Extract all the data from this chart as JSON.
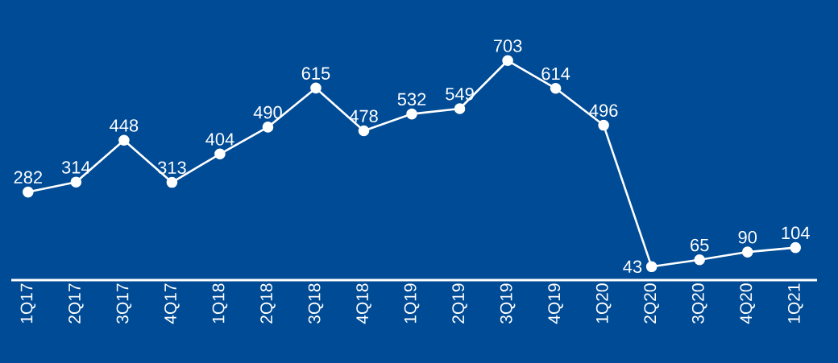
{
  "chart_data": {
    "type": "line",
    "categories": [
      "1Q17",
      "2Q17",
      "3Q17",
      "4Q17",
      "1Q18",
      "2Q18",
      "3Q18",
      "4Q18",
      "1Q19",
      "2Q19",
      "3Q19",
      "4Q19",
      "1Q20",
      "2Q20",
      "3Q20",
      "4Q20",
      "1Q21"
    ],
    "series": [
      {
        "color": "#ffffff",
        "values": [
          282,
          314,
          448,
          313,
          404,
          490,
          615,
          478,
          532,
          549,
          703,
          614,
          496,
          43,
          65,
          90,
          104
        ]
      }
    ],
    "marker": "circle",
    "data_labels": true
  }
}
